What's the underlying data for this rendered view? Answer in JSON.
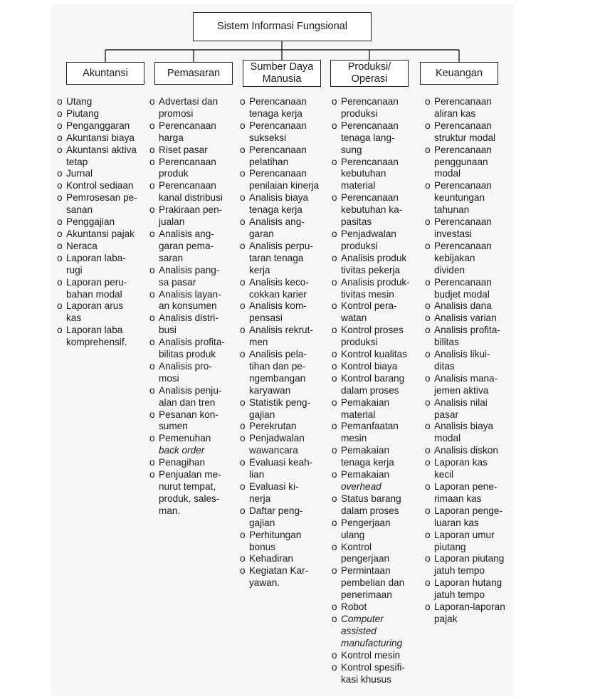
{
  "root": {
    "label": "Sistem Informasi Fungsional"
  },
  "bullet_marker": "o",
  "categories": [
    {
      "label": "Akuntansi",
      "items": [
        [
          "Utang"
        ],
        [
          "Piutang"
        ],
        [
          "Penganggaran"
        ],
        [
          "Akuntansi biaya"
        ],
        [
          "Akuntansi aktiva",
          "tetap"
        ],
        [
          "Jurnal"
        ],
        [
          "Kontrol sediaan"
        ],
        [
          "Pemrosesan pe-",
          "sanan"
        ],
        [
          "Penggajian"
        ],
        [
          "Akuntansi pajak"
        ],
        [
          "Neraca"
        ],
        [
          "Laporan laba-",
          "rugi"
        ],
        [
          "Laporan peru-",
          "bahan modal"
        ],
        [
          "Laporan arus",
          "kas"
        ],
        [
          "Laporan laba",
          "komprehensif."
        ]
      ]
    },
    {
      "label": "Pemasaran",
      "items": [
        [
          "Advertasi dan",
          "promosi"
        ],
        [
          "Perencanaan",
          "harga"
        ],
        [
          "Riset pasar"
        ],
        [
          "Perencanaan",
          "produk"
        ],
        [
          "Perencanaan",
          "kanal distribusi"
        ],
        [
          "Prakiraan pen-",
          "jualan"
        ],
        [
          "Analisis ang-",
          "garan pema-",
          "saran"
        ],
        [
          "Analisis pang-",
          "sa pasar"
        ],
        [
          "Analisis layan-",
          "an konsumen"
        ],
        [
          "Analisis distri-",
          "busi"
        ],
        [
          "Analisis profita-",
          "bilitas produk"
        ],
        [
          "Analisis pro-",
          "mosi"
        ],
        [
          "Analisis penju-",
          "alan dan tren"
        ],
        [
          "Pesanan kon-",
          "sumen"
        ],
        [
          "Pemenuhan",
          "back order"
        ],
        [
          "Penagihan"
        ],
        [
          "Penjualan me-",
          "nurut tempat,",
          "produk, sales-",
          "man."
        ]
      ]
    },
    {
      "label": "Sumber Daya\nManusia",
      "items": [
        [
          "Perencanaan",
          "tenaga kerja"
        ],
        [
          "Perencanaan",
          "sukseksi"
        ],
        [
          "Perencanaan",
          "pelatihan"
        ],
        [
          "Perencanaan",
          "penilaian kinerja"
        ],
        [
          "Analisis biaya",
          "tenaga kerja"
        ],
        [
          "Analisis ang-",
          "garan"
        ],
        [
          "Analisis perpu-",
          "taran tenaga",
          "kerja"
        ],
        [
          "Analisis keco-",
          "cokkan karier"
        ],
        [
          "Analisis kom-",
          "pensasi"
        ],
        [
          "Analisis rekrut-",
          "men"
        ],
        [
          "Analisis pela-",
          "tihan dan pe-",
          "ngembangan",
          "karyawan"
        ],
        [
          "Statistik peng-",
          "gajian"
        ],
        [
          "Perekrutan"
        ],
        [
          "Penjadwalan",
          "wawancara"
        ],
        [
          "Evaluasi keah-",
          "lian"
        ],
        [
          "Evaluasi ki-",
          "nerja"
        ],
        [
          "Daftar peng-",
          "gajian"
        ],
        [
          "Perhitungan",
          "bonus"
        ],
        [
          "Kehadiran"
        ],
        [
          "Kegiatan Kar-",
          "yawan."
        ]
      ]
    },
    {
      "label": "Produksi/\nOperasi",
      "items": [
        [
          "Perencanaan",
          "produksi"
        ],
        [
          "Perencanaan",
          "tenaga lang-",
          "sung"
        ],
        [
          "Perencanaan",
          "kebutuhan",
          "material"
        ],
        [
          "Perencanaan",
          "kebutuhan ka-",
          "pasitas"
        ],
        [
          "Penjadwalan",
          "produksi"
        ],
        [
          "Analisis produk",
          "tivitas pekerja"
        ],
        [
          "Analisis produk-",
          "tivitas mesin"
        ],
        [
          "Kontrol pera-",
          "watan"
        ],
        [
          "Kontrol proses",
          "produksi"
        ],
        [
          "Kontrol kualitas"
        ],
        [
          "Kontrol biaya"
        ],
        [
          "Kontrol barang",
          "dalam proses"
        ],
        [
          "Pemakaian",
          "material"
        ],
        [
          "Pemanfaatan",
          "mesin"
        ],
        [
          "Pemakaian",
          "tenaga kerja"
        ],
        [
          "Pemakaian",
          "overhead"
        ],
        [
          "Status barang",
          "dalam proses"
        ],
        [
          "Pengerjaan",
          "ulang"
        ],
        [
          "Kontrol",
          "pengerjaan"
        ],
        [
          "Permintaan",
          "pembelian dan",
          "penerimaan"
        ],
        [
          "Robot"
        ],
        [
          "Computer",
          "assisted",
          "manufacturing"
        ],
        [
          "Kontrol mesin"
        ],
        [
          "Kontrol spesifi-",
          "kasi khusus"
        ]
      ]
    },
    {
      "label": "Keuangan",
      "items": [
        [
          "Perencanaan",
          "aliran kas"
        ],
        [
          "Perencanaan",
          "struktur modal"
        ],
        [
          "Perencanaan",
          "penggunaan",
          "modal"
        ],
        [
          "Perencanaan",
          "keuntungan",
          "tahunan"
        ],
        [
          "Perencanaan",
          "investasi"
        ],
        [
          "Perencanaan",
          "kebijakan",
          "dividen"
        ],
        [
          "Perencanaan",
          "budjet modal"
        ],
        [
          "Analisis dana"
        ],
        [
          "Analisis varian"
        ],
        [
          "Analisis profita-",
          "bilitas"
        ],
        [
          "Analisis likui-",
          "ditas"
        ],
        [
          "Analisis mana-",
          "jemen aktiva"
        ],
        [
          "Analisis nilai",
          "pasar"
        ],
        [
          "Analisis biaya",
          "modal"
        ],
        [
          "Analisis diskon"
        ],
        [
          "Laporan kas",
          "kecil"
        ],
        [
          "Laporan pene-",
          "rimaan kas"
        ],
        [
          "Laporan penge-",
          "luaran kas"
        ],
        [
          "Laporan umur",
          "piutang"
        ],
        [
          "Laporan piutang",
          "jatuh tempo"
        ],
        [
          "Laporan hutang",
          "jatuh tempo"
        ],
        [
          "Laporan-laporan",
          "pajak"
        ]
      ]
    }
  ],
  "italic_items": {
    "1": [
      14
    ],
    "3": [
      15,
      21
    ]
  }
}
